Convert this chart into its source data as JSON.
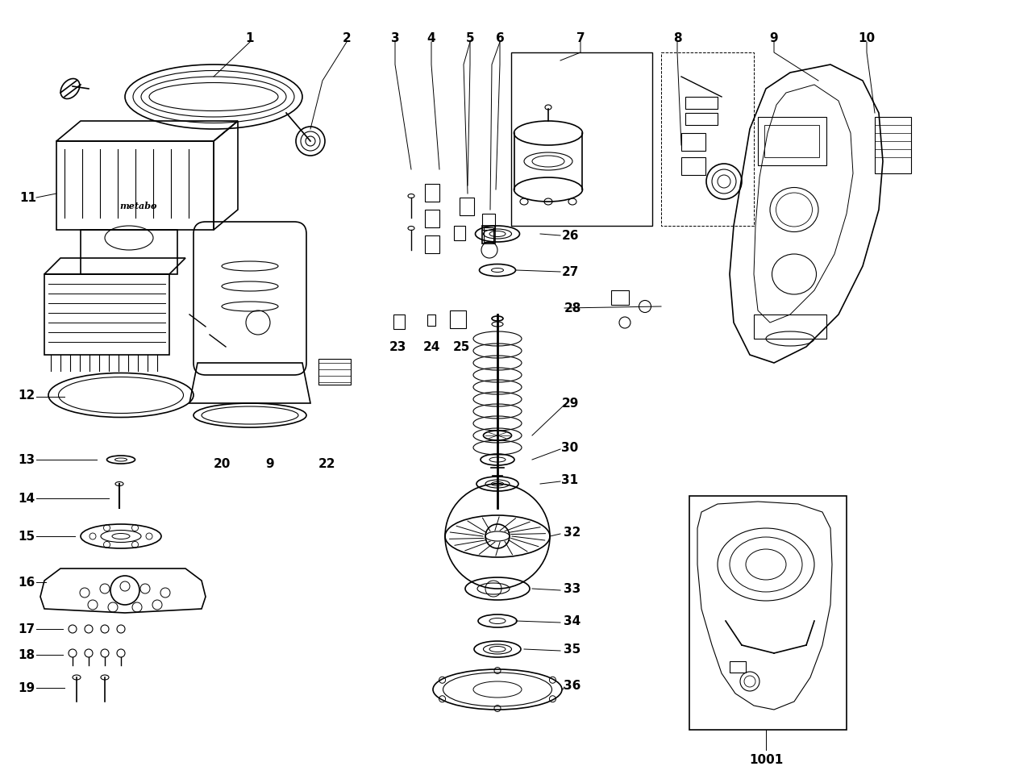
{
  "title": "",
  "background_color": "#ffffff",
  "line_color": "#000000",
  "label_color": "#000000",
  "figsize": [
    12.8,
    9.71
  ],
  "dpi": 100
}
